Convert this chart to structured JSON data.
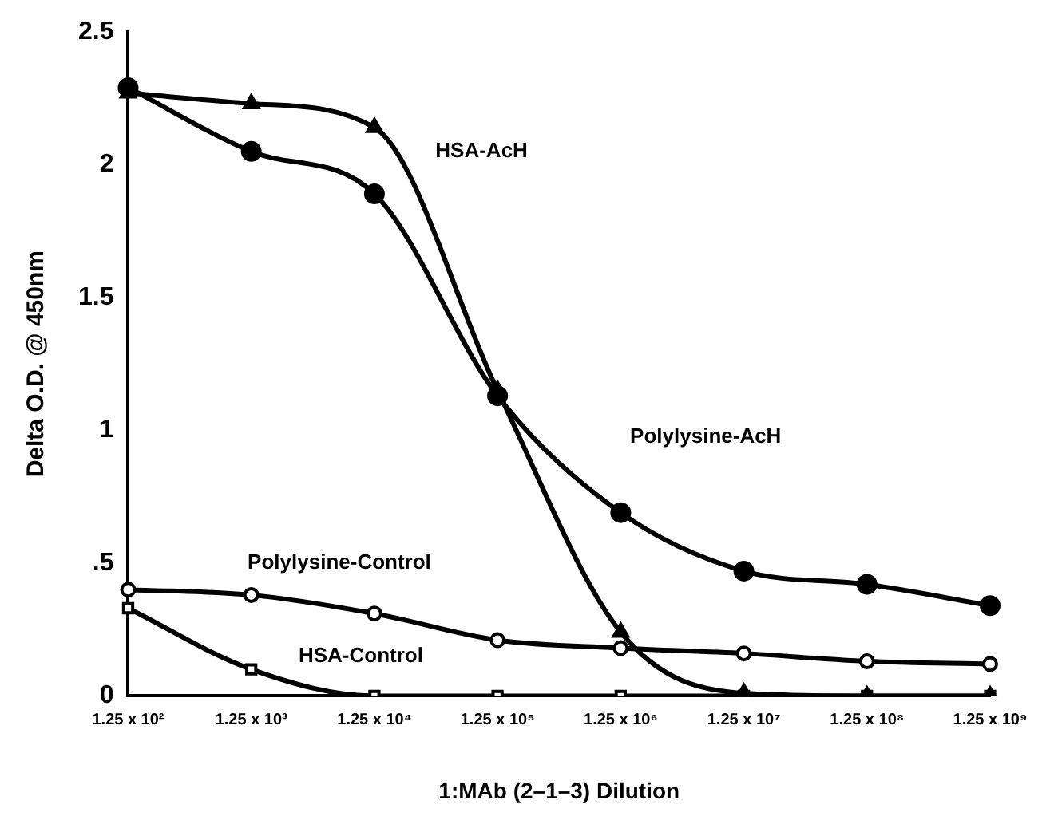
{
  "chart_data": {
    "type": "line",
    "xlabel": "1:MAb (2–1–3) Dilution",
    "ylabel": "Delta O.D. @ 450nm",
    "categories": [
      "1.25 x 10²",
      "1.25 x 10³",
      "1.25 x 10⁴",
      "1.25 x 10⁵",
      "1.25 x 10⁶",
      "1.25 x 10⁷",
      "1.25 x 10⁸",
      "1.25 x 10⁹"
    ],
    "ylim": [
      0,
      2.5
    ],
    "yticks": [
      0,
      {
        "value": 0.5,
        "label": ".5"
      },
      1,
      1.5,
      2,
      2.5
    ],
    "grid": false,
    "legend": false,
    "line_style": "solid",
    "series": [
      {
        "name": "HSA-AcH",
        "color": "#000000",
        "marker": "triangle",
        "values": [
          2.27,
          2.23,
          2.14,
          1.15,
          0.24,
          0.01,
          0,
          0
        ]
      },
      {
        "name": "Polylysine-AcH",
        "color": "#000000",
        "marker": "circle",
        "values": [
          2.29,
          2.05,
          1.89,
          1.13,
          0.69,
          0.47,
          0.42,
          0.34
        ]
      },
      {
        "name": "Polylysine-Control",
        "color": "#000000",
        "marker": "circle-open",
        "values": [
          0.4,
          0.38,
          0.31,
          0.21,
          0.18,
          0.16,
          0.13,
          0.12
        ]
      },
      {
        "name": "HSA-Control",
        "color": "#000000",
        "marker": "square-open",
        "values": [
          0.33,
          0.1,
          0,
          0,
          0,
          0,
          0,
          0
        ]
      }
    ]
  }
}
